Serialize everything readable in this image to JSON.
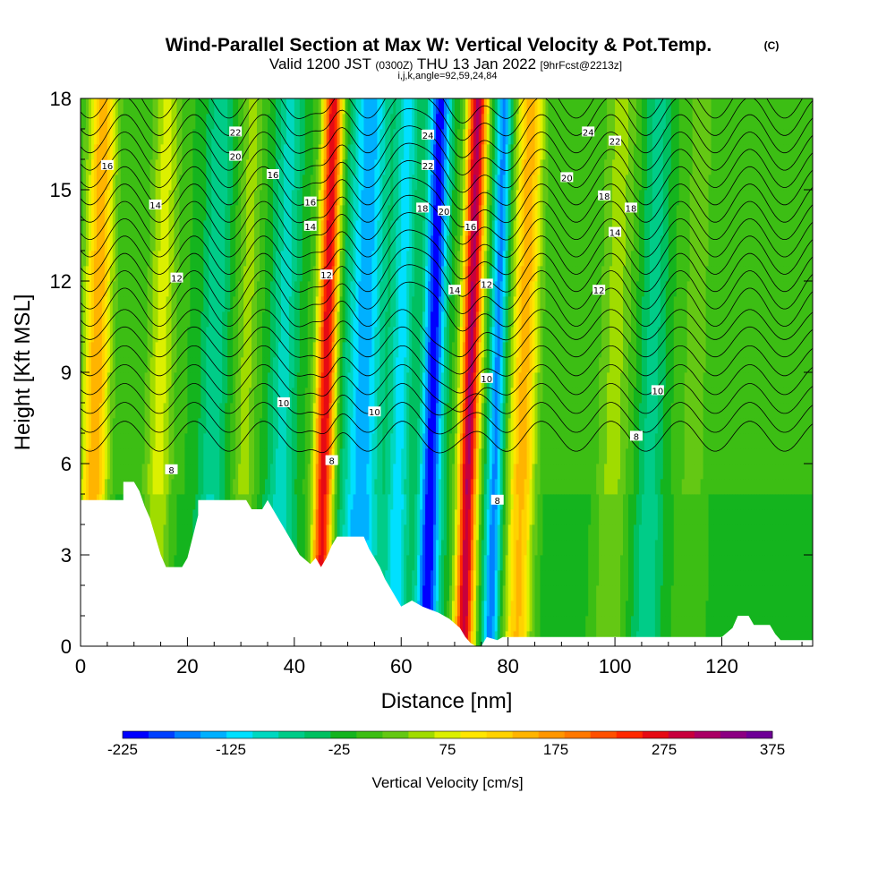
{
  "title": "Wind-Parallel Section at Max W: Vertical Velocity & Pot.Temp.",
  "copyright": "(C)",
  "subtitle_pre": "Valid 1200 JST",
  "subtitle_z": "(0300Z)",
  "subtitle_mid": "THU 13 Jan 2022",
  "subtitle_fcst": "[9hrFcst@2213z]",
  "subtitle_ijk": "i,j,k,angle=92,59,24,84",
  "chart_data": {
    "type": "heatmap",
    "xlabel": "Distance [nm]",
    "ylabel": "Height [Kft MSL]",
    "xlim": [
      0,
      137
    ],
    "ylim": [
      0,
      18
    ],
    "x_ticks": [
      0,
      20,
      40,
      60,
      80,
      100,
      120
    ],
    "y_ticks": [
      0,
      3,
      6,
      9,
      12,
      15,
      18
    ],
    "x_tick_labels": [
      "0",
      "20",
      "40",
      "60",
      "80",
      "100",
      "120"
    ],
    "y_tick_labels": [
      "0",
      "3",
      "6",
      "9",
      "12",
      "15",
      "18"
    ],
    "colorbar": {
      "label": "Vertical Velocity [cm/s]",
      "min": -225,
      "max": 375,
      "step": 25,
      "tick_values": [
        -225,
        -125,
        -25,
        75,
        175,
        275,
        375
      ],
      "tick_labels": [
        "-225",
        "-125",
        "-25",
        "75",
        "175",
        "275",
        "375"
      ],
      "colors": [
        "#0000ff",
        "#0040ff",
        "#0080ff",
        "#00b0ff",
        "#00e0ff",
        "#00d8c0",
        "#00cc88",
        "#00c060",
        "#14b41e",
        "#3cbe14",
        "#64c814",
        "#a0dc00",
        "#dcf000",
        "#ffe600",
        "#ffd200",
        "#ffb400",
        "#ff9600",
        "#ff7800",
        "#ff5000",
        "#ff2800",
        "#e60a14",
        "#c8003c",
        "#aa0064",
        "#8c0082",
        "#6e0096"
      ]
    },
    "velocity_bands": [
      {
        "x": 3,
        "w": 170,
        "wid": 2.5
      },
      {
        "x": 15,
        "w": 85,
        "wid": 2.5
      },
      {
        "x": 25,
        "w": -70,
        "wid": 2.5
      },
      {
        "x": 31,
        "w": 60,
        "wid": 2.0
      },
      {
        "x": 38,
        "w": -85,
        "wid": 2.5
      },
      {
        "x": 46,
        "w": 300,
        "wid": 1.8
      },
      {
        "x": 53,
        "w": -140,
        "wid": 3.5
      },
      {
        "x": 60,
        "w": -110,
        "wid": 2.0
      },
      {
        "x": 66,
        "w": -215,
        "wid": 2.0
      },
      {
        "x": 73,
        "w": 330,
        "wid": 1.8
      },
      {
        "x": 78,
        "w": -160,
        "wid": 1.5
      },
      {
        "x": 83,
        "w": 165,
        "wid": 2.5
      },
      {
        "x": 100,
        "w": 60,
        "wid": 3.0
      },
      {
        "x": 107,
        "w": -60,
        "wid": 2.5
      },
      {
        "x": 115,
        "w": 35,
        "wid": 3.0
      }
    ],
    "terrain": [
      [
        0,
        4.8
      ],
      [
        8,
        4.8
      ],
      [
        8,
        5.4
      ],
      [
        10,
        5.4
      ],
      [
        11,
        5.1
      ],
      [
        12,
        4.6
      ],
      [
        13,
        4.2
      ],
      [
        14,
        3.6
      ],
      [
        15,
        3.0
      ],
      [
        16,
        2.6
      ],
      [
        19,
        2.6
      ],
      [
        20,
        2.9
      ],
      [
        21,
        3.6
      ],
      [
        22,
        4.3
      ],
      [
        22,
        4.8
      ],
      [
        31,
        4.8
      ],
      [
        32,
        4.5
      ],
      [
        34,
        4.5
      ],
      [
        35,
        4.8
      ],
      [
        36,
        4.5
      ],
      [
        37,
        4.2
      ],
      [
        38,
        3.9
      ],
      [
        39,
        3.6
      ],
      [
        40,
        3.3
      ],
      [
        41,
        3.0
      ],
      [
        43,
        2.7
      ],
      [
        44,
        2.9
      ],
      [
        45,
        2.6
      ],
      [
        46,
        2.9
      ],
      [
        47,
        3.3
      ],
      [
        48,
        3.6
      ],
      [
        53,
        3.6
      ],
      [
        54,
        3.2
      ],
      [
        55,
        2.9
      ],
      [
        56,
        2.6
      ],
      [
        57,
        2.2
      ],
      [
        58,
        1.9
      ],
      [
        59,
        1.6
      ],
      [
        60,
        1.3
      ],
      [
        62,
        1.5
      ],
      [
        64,
        1.3
      ],
      [
        67,
        1.1
      ],
      [
        69,
        0.9
      ],
      [
        71,
        0.6
      ],
      [
        72,
        0.3
      ],
      [
        73,
        0.1
      ],
      [
        74,
        0.0
      ],
      [
        75,
        0.0
      ],
      [
        76,
        0.3
      ],
      [
        78,
        0.2
      ],
      [
        79,
        0.3
      ],
      [
        84,
        0.3
      ],
      [
        86,
        0.3
      ],
      [
        120,
        0.3
      ],
      [
        122,
        0.6
      ],
      [
        123,
        1.0
      ],
      [
        125,
        1.0
      ],
      [
        126,
        0.7
      ],
      [
        129,
        0.7
      ],
      [
        130,
        0.4
      ],
      [
        131,
        0.2
      ],
      [
        137,
        0.2
      ]
    ],
    "contour_levels": [
      7,
      8,
      9,
      10,
      11,
      12,
      13,
      14,
      15,
      16,
      17,
      18,
      19,
      20,
      21,
      22,
      23,
      24,
      25,
      26
    ],
    "contour_labels": [
      {
        "x": 5,
        "y": 15.8,
        "t": "16"
      },
      {
        "x": 14,
        "y": 14.5,
        "t": "14"
      },
      {
        "x": 18,
        "y": 12.1,
        "t": "12"
      },
      {
        "x": 29,
        "y": 16.9,
        "t": "22"
      },
      {
        "x": 29,
        "y": 16.1,
        "t": "20"
      },
      {
        "x": 36,
        "y": 15.5,
        "t": "16"
      },
      {
        "x": 43,
        "y": 14.6,
        "t": "16"
      },
      {
        "x": 43,
        "y": 13.8,
        "t": "14"
      },
      {
        "x": 46,
        "y": 12.2,
        "t": "12"
      },
      {
        "x": 38,
        "y": 8.0,
        "t": "10"
      },
      {
        "x": 55,
        "y": 7.7,
        "t": "10"
      },
      {
        "x": 47,
        "y": 6.1,
        "t": "8"
      },
      {
        "x": 17,
        "y": 5.8,
        "t": "8"
      },
      {
        "x": 65,
        "y": 16.8,
        "t": "24"
      },
      {
        "x": 65,
        "y": 15.8,
        "t": "22"
      },
      {
        "x": 64,
        "y": 14.4,
        "t": "18"
      },
      {
        "x": 68,
        "y": 14.3,
        "t": "20"
      },
      {
        "x": 73,
        "y": 13.8,
        "t": "16"
      },
      {
        "x": 70,
        "y": 11.7,
        "t": "14"
      },
      {
        "x": 76,
        "y": 11.9,
        "t": "12"
      },
      {
        "x": 76,
        "y": 8.8,
        "t": "10"
      },
      {
        "x": 78,
        "y": 4.8,
        "t": "8"
      },
      {
        "x": 95,
        "y": 16.9,
        "t": "24"
      },
      {
        "x": 100,
        "y": 16.6,
        "t": "22"
      },
      {
        "x": 91,
        "y": 15.4,
        "t": "20"
      },
      {
        "x": 98,
        "y": 14.8,
        "t": "18"
      },
      {
        "x": 103,
        "y": 14.4,
        "t": "18"
      },
      {
        "x": 100,
        "y": 13.6,
        "t": "14"
      },
      {
        "x": 97,
        "y": 11.7,
        "t": "12"
      },
      {
        "x": 108,
        "y": 8.4,
        "t": "10"
      },
      {
        "x": 104,
        "y": 6.9,
        "t": "8"
      }
    ]
  }
}
